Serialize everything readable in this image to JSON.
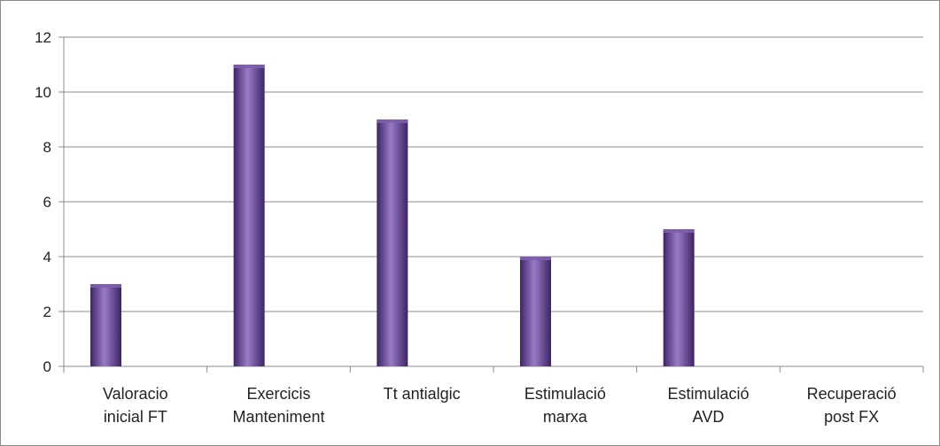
{
  "chart_data": {
    "type": "bar",
    "categories": [
      [
        "Valoracio",
        "inicial FT"
      ],
      [
        "Exercicis",
        "Manteniment"
      ],
      [
        "Tt antialgic"
      ],
      [
        "Estimulació",
        "marxa"
      ],
      [
        "Estimulació",
        "AVD"
      ],
      [
        "Recuperació",
        "post FX"
      ]
    ],
    "values": [
      3,
      11,
      9,
      4,
      5,
      0
    ],
    "ylim": [
      0,
      12
    ],
    "yticks": [
      0,
      2,
      4,
      6,
      8,
      10,
      12
    ],
    "grid": true,
    "legend": "none",
    "colors": {
      "bar_dark": "#3d2466",
      "bar_mid": "#7e5fad",
      "bar_light": "#9a7cc6",
      "grid": "#8c8c8c",
      "axis": "#8c8c8c"
    }
  }
}
